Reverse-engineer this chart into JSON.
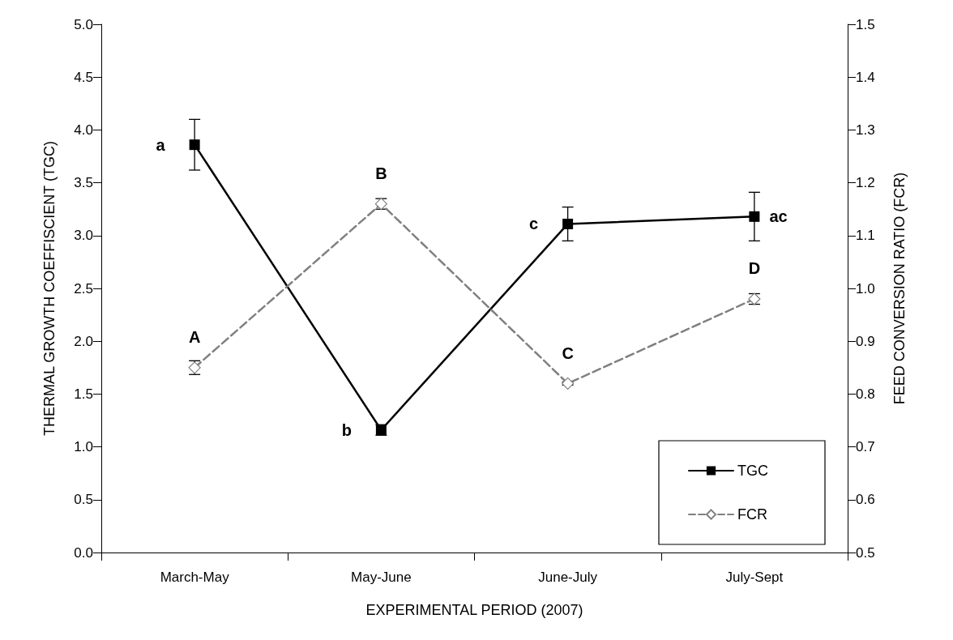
{
  "chart_data": {
    "type": "line",
    "xlabel": "EXPERIMENTAL PERIOD (2007)",
    "ylabel": "THERMAL GROWTH COEFFISCIENT (TGC)",
    "y2label": "FEED CONVERSION RATIO (FCR)",
    "categories": [
      "March-May",
      "May-June",
      "June-July",
      "July-Sept"
    ],
    "series": [
      {
        "name": "TGC",
        "color": "#000000",
        "marker": "square",
        "line_style": "solid",
        "values": [
          3.86,
          1.16,
          3.11,
          3.18
        ],
        "errors": [
          0.24,
          0.05,
          0.16,
          0.23
        ],
        "value_labels": [
          "a",
          "b",
          "c",
          "ac"
        ]
      },
      {
        "name": "FCR",
        "color": "#808080",
        "marker": "diamond",
        "line_style": "dashed",
        "axis": "y2",
        "values": [
          0.85,
          1.16,
          0.82,
          0.98
        ],
        "errors": [
          0.013,
          0.01,
          0.003,
          0.01
        ],
        "value_labels": [
          "A",
          "B",
          "C",
          "D"
        ]
      }
    ],
    "ylim": [
      0,
      5
    ],
    "yticks": [
      {
        "value": 0,
        "label": "0.0"
      },
      {
        "value": 0.5,
        "label": "0.5"
      },
      {
        "value": 1,
        "label": "1.0"
      },
      {
        "value": 1.5,
        "label": "1.5"
      },
      {
        "value": 2,
        "label": "2.0"
      },
      {
        "value": 2.5,
        "label": "2.5"
      },
      {
        "value": 3,
        "label": "3.0"
      },
      {
        "value": 3.5,
        "label": "3.5"
      },
      {
        "value": 4,
        "label": "4.0"
      },
      {
        "value": 4.5,
        "label": "4.5"
      },
      {
        "value": 5,
        "label": "5.0"
      }
    ],
    "y2lim": [
      0.5,
      1.5
    ],
    "y2ticks": [
      0.5,
      0.6,
      0.7,
      0.8,
      0.9,
      {
        "value": 1,
        "label": "1.0"
      },
      1.1,
      1.2,
      1.3,
      1.4,
      {
        "value": 1.5,
        "label": "1.5"
      }
    ],
    "grid": false,
    "legend": "bottom right"
  }
}
